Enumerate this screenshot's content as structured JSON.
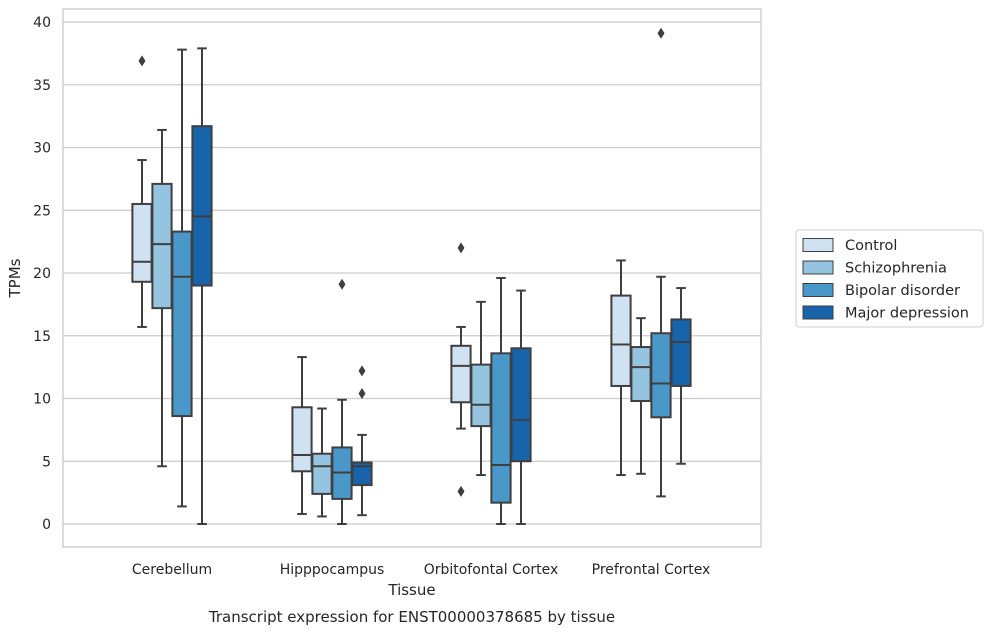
{
  "chart_data": {
    "type": "boxplot",
    "caption": "Transcript expression for ENST00000378685 by tissue",
    "xlabel": "Tissue",
    "ylabel": "TPMs",
    "ylim": [
      -1.8,
      41
    ],
    "yticks": [
      0,
      5,
      10,
      15,
      20,
      25,
      30,
      35,
      40
    ],
    "grid": "horizontal",
    "legend_position": "right",
    "categories": [
      "Cerebellum",
      "Hipppocampus",
      "Orbitofontal Cortex",
      "Prefrontal Cortex"
    ],
    "series": [
      {
        "name": "Control",
        "color": "#d0e1f2",
        "boxes": [
          {
            "whislo": 15.7,
            "q1": 19.3,
            "med": 20.9,
            "q3": 25.5,
            "whishi": 29.0,
            "fliers": [
              36.9
            ]
          },
          {
            "whislo": 0.8,
            "q1": 4.2,
            "med": 5.5,
            "q3": 9.3,
            "whishi": 13.3,
            "fliers": []
          },
          {
            "whislo": 7.6,
            "q1": 9.7,
            "med": 12.6,
            "q3": 14.2,
            "whishi": 15.7,
            "fliers": [
              22.0,
              2.6
            ]
          },
          {
            "whislo": 3.9,
            "q1": 11.0,
            "med": 14.3,
            "q3": 18.2,
            "whishi": 21.0,
            "fliers": []
          }
        ]
      },
      {
        "name": "Schizophrenia",
        "color": "#94c4df",
        "boxes": [
          {
            "whislo": 4.6,
            "q1": 17.2,
            "med": 22.3,
            "q3": 27.1,
            "whishi": 31.4,
            "fliers": []
          },
          {
            "whislo": 0.6,
            "q1": 2.4,
            "med": 4.6,
            "q3": 5.6,
            "whishi": 9.2,
            "fliers": []
          },
          {
            "whislo": 3.9,
            "q1": 7.8,
            "med": 9.5,
            "q3": 12.7,
            "whishi": 17.7,
            "fliers": []
          },
          {
            "whislo": 4.0,
            "q1": 9.8,
            "med": 12.5,
            "q3": 14.1,
            "whishi": 16.4,
            "fliers": []
          }
        ]
      },
      {
        "name": "Bipolar disorder",
        "color": "#4a98c9",
        "boxes": [
          {
            "whislo": 1.4,
            "q1": 8.6,
            "med": 19.7,
            "q3": 23.3,
            "whishi": 37.8,
            "fliers": []
          },
          {
            "whislo": 0.0,
            "q1": 2.0,
            "med": 4.1,
            "q3": 6.1,
            "whishi": 9.9,
            "fliers": [
              19.1
            ]
          },
          {
            "whislo": 0.0,
            "q1": 1.7,
            "med": 4.7,
            "q3": 13.6,
            "whishi": 19.6,
            "fliers": []
          },
          {
            "whislo": 2.2,
            "q1": 8.5,
            "med": 11.2,
            "q3": 15.2,
            "whishi": 19.7,
            "fliers": [
              39.1
            ]
          }
        ]
      },
      {
        "name": "Major depression",
        "color": "#1764ab",
        "boxes": [
          {
            "whislo": 0.0,
            "q1": 19.0,
            "med": 24.5,
            "q3": 31.7,
            "whishi": 37.9,
            "fliers": []
          },
          {
            "whislo": 0.7,
            "q1": 3.1,
            "med": 4.6,
            "q3": 4.9,
            "whishi": 7.1,
            "fliers": [
              12.2,
              10.4
            ]
          },
          {
            "whislo": 0.0,
            "q1": 5.0,
            "med": 8.3,
            "q3": 14.0,
            "whishi": 18.6,
            "fliers": []
          },
          {
            "whislo": 4.8,
            "q1": 11.0,
            "med": 14.5,
            "q3": 16.3,
            "whishi": 18.8,
            "fliers": []
          }
        ]
      }
    ]
  }
}
